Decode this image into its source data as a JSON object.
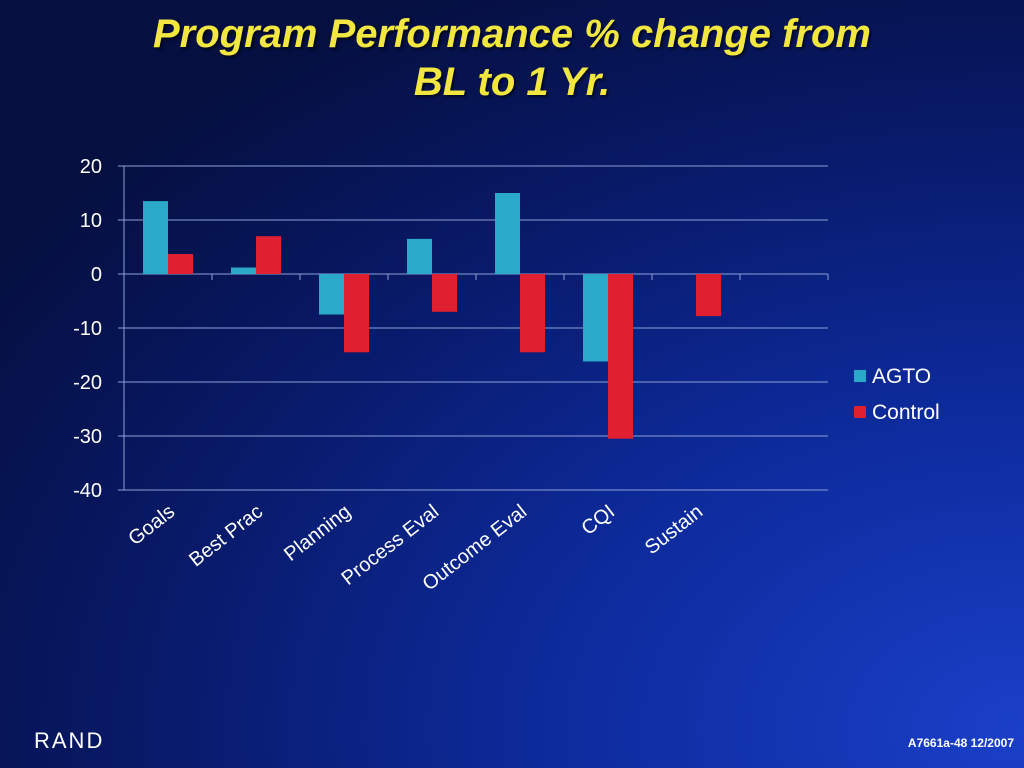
{
  "slide": {
    "title_line1": "Program Performance % change from",
    "title_line2": "BL to 1 Yr.",
    "logo_text": "RAND",
    "footer_code": "A7661a-48  12/2007"
  },
  "chart_data": {
    "type": "bar",
    "categories": [
      "Goals",
      "Best Prac",
      "Planning",
      "Process Eval",
      "Outcome Eval",
      "CQI",
      "Sustain",
      ""
    ],
    "series": [
      {
        "name": "AGTO",
        "color": "#2aa9c8",
        "values": [
          13.5,
          1.2,
          -7.5,
          6.5,
          15,
          -16.2,
          null,
          null
        ]
      },
      {
        "name": "Control",
        "color": "#e02030",
        "values": [
          3.7,
          7,
          -14.5,
          -7,
          -14.5,
          -30.5,
          -7.8,
          null
        ]
      }
    ],
    "ylim": [
      -40,
      20
    ],
    "yticks": [
      20,
      10,
      0,
      -10,
      -20,
      -30,
      -40
    ],
    "grid": true,
    "legend": "right"
  }
}
